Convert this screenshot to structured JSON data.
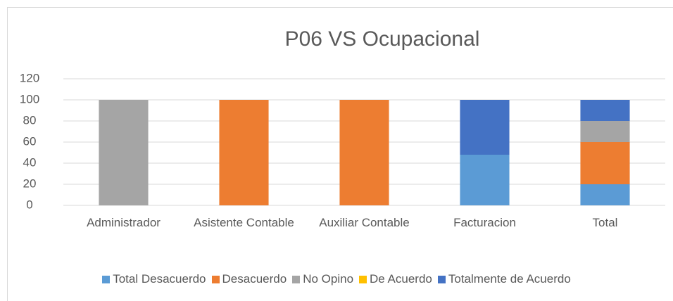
{
  "chart_data": {
    "type": "stacked_bar",
    "title": "P06 VS Ocupacional",
    "categories": [
      "Administrador",
      "Asistente Contable",
      "Auxiliar Contable",
      "Facturacion",
      "Total"
    ],
    "series": [
      {
        "name": "Total Desacuerdo",
        "color": "#5b9bd5",
        "values": [
          0,
          0,
          0,
          48,
          20
        ]
      },
      {
        "name": "Desacuerdo",
        "color": "#ed7d31",
        "values": [
          0,
          100,
          100,
          0,
          40
        ]
      },
      {
        "name": "No Opino",
        "color": "#a5a5a5",
        "values": [
          100,
          0,
          0,
          0,
          20
        ]
      },
      {
        "name": "De Acuerdo",
        "color": "#ffc000",
        "values": [
          0,
          0,
          0,
          0,
          0
        ]
      },
      {
        "name": "Totalmente de Acuerdo",
        "color": "#4472c4",
        "values": [
          0,
          0,
          0,
          52,
          20
        ]
      }
    ],
    "ylim": [
      0,
      120
    ],
    "yticks": [
      0,
      20,
      40,
      60,
      80,
      100,
      120
    ],
    "grid": true,
    "legend": "bottom"
  }
}
